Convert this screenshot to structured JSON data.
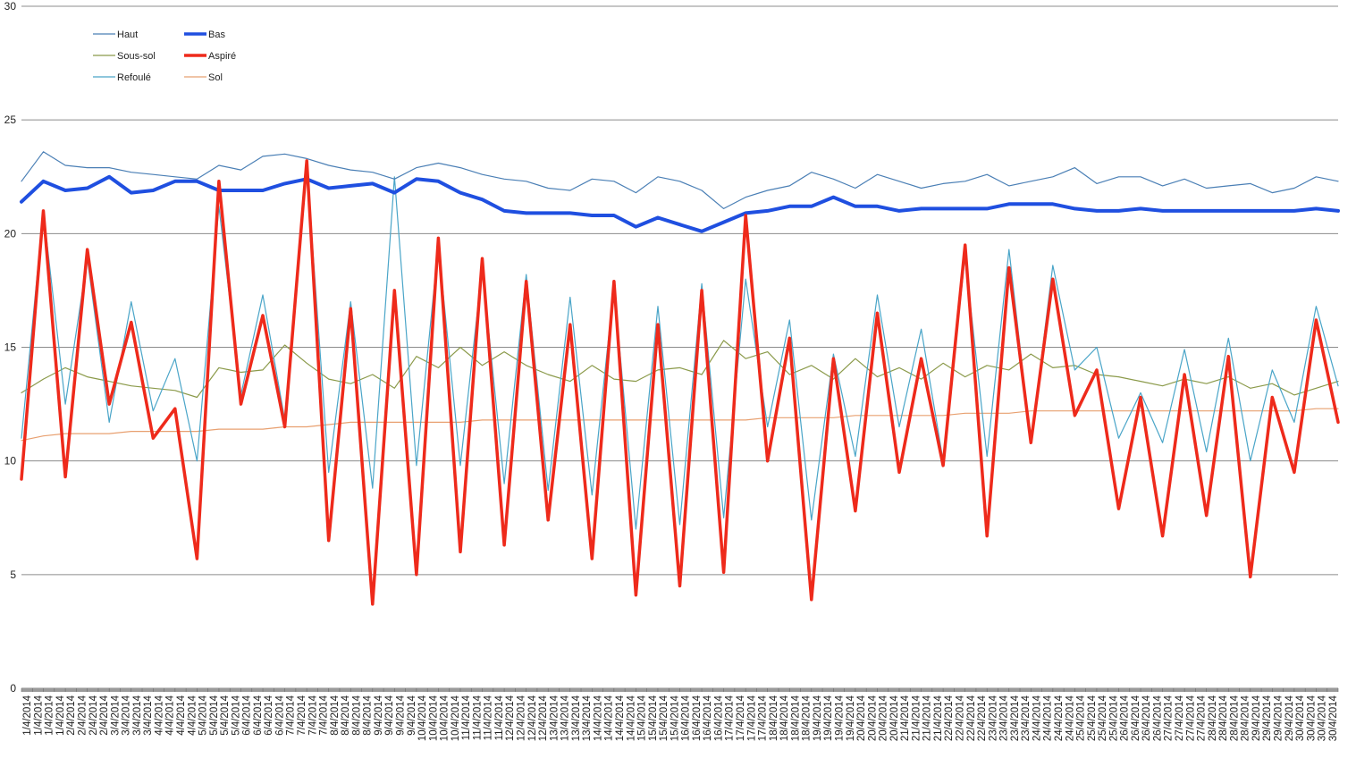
{
  "chart_data": {
    "type": "line",
    "title": "",
    "xlabel": "",
    "ylabel": "",
    "ylim": [
      0,
      30
    ],
    "y_ticks": [
      "0",
      "5",
      "10",
      "15",
      "20",
      "25",
      "30"
    ],
    "grid": "horizontal",
    "legend_placement": "top-left",
    "x_tick_labels": [
      "1/4/2014",
      "1/4/2014",
      "1/4/2014",
      "1/4/2014",
      "2/4/2014",
      "2/4/2014",
      "2/4/2014",
      "2/4/2014",
      "3/4/2014",
      "3/4/2014",
      "3/4/2014",
      "3/4/2014",
      "4/4/2014",
      "4/4/2014",
      "4/4/2014",
      "4/4/2014",
      "5/4/2014",
      "5/4/2014",
      "5/4/2014",
      "5/4/2014",
      "6/4/2014",
      "6/4/2014",
      "6/4/2014",
      "6/4/2014",
      "7/4/2014",
      "7/4/2014",
      "7/4/2014",
      "7/4/2014",
      "8/4/2014",
      "8/4/2014",
      "8/4/2014",
      "8/4/2014",
      "9/4/2014",
      "9/4/2014",
      "9/4/2014",
      "9/4/2014",
      "10/4/2014",
      "10/4/2014",
      "10/4/2014",
      "10/4/2014",
      "11/4/2014",
      "11/4/2014",
      "11/4/2014",
      "11/4/2014",
      "12/4/2014",
      "12/4/2014",
      "12/4/2014",
      "12/4/2014",
      "13/4/2014",
      "13/4/2014",
      "13/4/2014",
      "13/4/2014",
      "14/4/2014",
      "14/4/2014",
      "14/4/2014",
      "14/4/2014",
      "15/4/2014",
      "15/4/2014",
      "15/4/2014",
      "15/4/2014",
      "16/4/2014",
      "16/4/2014",
      "16/4/2014",
      "16/4/2014",
      "17/4/2014",
      "17/4/2014",
      "17/4/2014",
      "17/4/2014",
      "18/4/2014",
      "18/4/2014",
      "18/4/2014",
      "18/4/2014",
      "19/4/2014",
      "19/4/2014",
      "19/4/2014",
      "19/4/2014",
      "20/4/2014",
      "20/4/2014",
      "20/4/2014",
      "20/4/2014",
      "21/4/2014",
      "21/4/2014",
      "21/4/2014",
      "21/4/2014",
      "22/4/2014",
      "22/4/2014",
      "22/4/2014",
      "22/4/2014",
      "23/4/2014",
      "23/4/2014",
      "23/4/2014",
      "23/4/2014",
      "24/4/2014",
      "24/4/2014",
      "24/4/2014",
      "24/4/2014",
      "25/4/2014",
      "25/4/2014",
      "25/4/2014",
      "25/4/2014",
      "26/4/2014",
      "26/4/2014",
      "26/4/2014",
      "26/4/2014",
      "27/4/2014",
      "27/4/2014",
      "27/4/2014",
      "27/4/2014",
      "28/4/2014",
      "28/4/2014",
      "28/4/2014",
      "28/4/2014",
      "29/4/2014",
      "29/4/2014",
      "29/4/2014",
      "29/4/2014",
      "30/4/2014",
      "30/4/2014",
      "30/4/2014",
      "30/4/2014"
    ],
    "x": [
      1.0,
      1.5,
      2.0,
      2.5,
      3.0,
      3.5,
      4.0,
      4.5,
      5.0,
      5.5,
      6.0,
      6.5,
      7.0,
      7.5,
      8.0,
      8.5,
      9.0,
      9.5,
      10.0,
      10.5,
      11.0,
      11.5,
      12.0,
      12.5,
      13.0,
      13.5,
      14.0,
      14.5,
      15.0,
      15.5,
      16.0,
      16.5,
      17.0,
      17.5,
      18.0,
      18.5,
      19.0,
      19.5,
      20.0,
      20.5,
      21.0,
      21.5,
      22.0,
      22.5,
      23.0,
      23.5,
      24.0,
      24.5,
      25.0,
      25.5,
      26.0,
      26.5,
      27.0,
      27.5,
      28.0,
      28.5,
      29.0,
      29.5,
      30.0,
      30.5,
      31.0
    ],
    "series": [
      {
        "name": "Haut",
        "color": "#4a7fb5",
        "width": 1.2,
        "values": [
          22.3,
          23.6,
          23.0,
          22.9,
          22.9,
          22.7,
          22.6,
          22.5,
          22.4,
          23.0,
          22.8,
          23.4,
          23.5,
          23.3,
          23.0,
          22.8,
          22.7,
          22.4,
          22.9,
          23.1,
          22.9,
          22.6,
          22.4,
          22.3,
          22.0,
          21.9,
          22.4,
          22.3,
          21.8,
          22.5,
          22.3,
          21.9,
          21.1,
          21.6,
          21.9,
          22.1,
          22.7,
          22.4,
          22.0,
          22.6,
          22.3,
          22.0,
          22.2,
          22.3,
          22.6,
          22.1,
          22.3,
          22.5,
          22.9,
          22.2,
          22.5,
          22.5,
          22.1,
          22.4,
          22.0,
          22.1,
          22.2,
          21.8,
          22.0,
          22.5,
          22.3
        ]
      },
      {
        "name": "Bas",
        "color": "#1f4fe0",
        "width": 4,
        "values": [
          21.4,
          22.3,
          21.9,
          22.0,
          22.5,
          21.8,
          21.9,
          22.3,
          22.3,
          21.9,
          21.9,
          21.9,
          22.2,
          22.4,
          22.0,
          22.1,
          22.2,
          21.8,
          22.4,
          22.3,
          21.8,
          21.5,
          21.0,
          20.9,
          20.9,
          20.9,
          20.8,
          20.8,
          20.3,
          20.7,
          20.4,
          20.1,
          20.5,
          20.9,
          21.0,
          21.2,
          21.2,
          21.6,
          21.2,
          21.2,
          21.0,
          21.1,
          21.1,
          21.1,
          21.1,
          21.3,
          21.3,
          21.3,
          21.1,
          21.0,
          21.0,
          21.1,
          21.0,
          21.0,
          21.0,
          21.0,
          21.0,
          21.0,
          21.0,
          21.1,
          21.0
        ]
      },
      {
        "name": "Sous-sol",
        "color": "#8b9a4a",
        "width": 1.2,
        "values": [
          13.0,
          13.6,
          14.1,
          13.7,
          13.5,
          13.3,
          13.2,
          13.1,
          12.8,
          14.1,
          13.9,
          14.0,
          15.1,
          14.3,
          13.6,
          13.4,
          13.8,
          13.2,
          14.6,
          14.1,
          15.0,
          14.2,
          14.8,
          14.2,
          13.8,
          13.5,
          14.2,
          13.6,
          13.5,
          14.0,
          14.1,
          13.8,
          15.3,
          14.5,
          14.8,
          13.8,
          14.2,
          13.6,
          14.5,
          13.7,
          14.1,
          13.6,
          14.3,
          13.7,
          14.2,
          14.0,
          14.7,
          14.1,
          14.2,
          13.8,
          13.7,
          13.5,
          13.3,
          13.6,
          13.4,
          13.7,
          13.2,
          13.4,
          12.9,
          13.2,
          13.5
        ]
      },
      {
        "name": "Refoulé",
        "color": "#4aa5c8",
        "width": 1.2,
        "values": [
          11.0,
          21.0,
          12.5,
          18.9,
          11.7,
          17.0,
          12.2,
          14.5,
          10.0,
          21.2,
          12.9,
          17.3,
          11.8,
          23.0,
          9.5,
          17.0,
          8.8,
          22.5,
          9.8,
          19.5,
          9.8,
          18.5,
          9.0,
          18.2,
          8.7,
          17.2,
          8.5,
          17.7,
          7.0,
          16.8,
          7.2,
          17.8,
          7.5,
          18.0,
          11.5,
          16.2,
          7.4,
          14.7,
          10.2,
          17.3,
          11.5,
          15.8,
          10.0,
          19.0,
          10.2,
          19.3,
          10.8,
          18.6,
          14.0,
          15.0,
          11.0,
          13.0,
          10.8,
          14.9,
          10.4,
          15.4,
          10.0,
          14.0,
          11.7,
          16.8,
          13.3
        ]
      },
      {
        "name": "Aspiré",
        "color": "#ee2a1b",
        "width": 3.5,
        "values": [
          9.2,
          21.0,
          9.3,
          19.3,
          12.5,
          16.1,
          11.0,
          12.3,
          5.7,
          22.3,
          12.5,
          16.4,
          11.5,
          23.2,
          6.5,
          16.7,
          3.7,
          17.5,
          5.0,
          19.8,
          6.0,
          18.9,
          6.3,
          17.9,
          7.4,
          16.0,
          5.7,
          17.9,
          4.1,
          16.0,
          4.5,
          17.5,
          5.1,
          20.8,
          10.0,
          15.4,
          3.9,
          14.5,
          7.8,
          16.5,
          9.5,
          14.5,
          9.8,
          19.5,
          6.7,
          18.5,
          10.8,
          18.0,
          12.0,
          14.0,
          7.9,
          12.8,
          6.7,
          13.8,
          7.6,
          14.6,
          4.9,
          12.8,
          9.5,
          16.2,
          11.7
        ]
      },
      {
        "name": "Sol",
        "color": "#e8a070",
        "width": 1.2,
        "values": [
          10.9,
          11.1,
          11.2,
          11.2,
          11.2,
          11.3,
          11.3,
          11.3,
          11.3,
          11.4,
          11.4,
          11.4,
          11.5,
          11.5,
          11.6,
          11.7,
          11.7,
          11.7,
          11.7,
          11.7,
          11.7,
          11.8,
          11.8,
          11.8,
          11.8,
          11.8,
          11.8,
          11.8,
          11.8,
          11.8,
          11.8,
          11.8,
          11.8,
          11.8,
          11.9,
          11.9,
          11.9,
          11.9,
          12.0,
          12.0,
          12.0,
          12.0,
          12.0,
          12.1,
          12.1,
          12.1,
          12.2,
          12.2,
          12.2,
          12.2,
          12.2,
          12.2,
          12.2,
          12.2,
          12.2,
          12.2,
          12.2,
          12.2,
          12.2,
          12.3,
          12.3
        ]
      }
    ]
  }
}
